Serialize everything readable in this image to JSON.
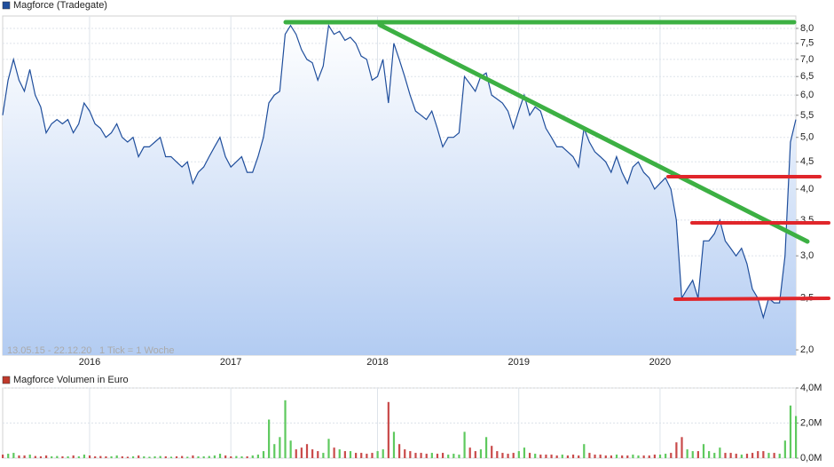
{
  "chart_data": [
    {
      "type": "line",
      "title": "Magforce (Tradegate)",
      "period": "13.05.15 - 22.12.20",
      "tick_note": "1 Tick = 1 Woche",
      "log": true,
      "grid": true,
      "color": "#1f4e9c",
      "categories": [
        null,
        null,
        null,
        null,
        null,
        null,
        null,
        null,
        null,
        null,
        null,
        null,
        null,
        null,
        null,
        null,
        "2016",
        null,
        null,
        null,
        null,
        null,
        null,
        null,
        null,
        null,
        null,
        null,
        null,
        null,
        null,
        null,
        null,
        null,
        null,
        null,
        null,
        null,
        null,
        null,
        null,
        null,
        "2017",
        null,
        null,
        null,
        null,
        null,
        null,
        null,
        null,
        null,
        null,
        null,
        null,
        null,
        null,
        null,
        null,
        null,
        null,
        null,
        null,
        null,
        null,
        null,
        null,
        null,
        null,
        "2018",
        null,
        null,
        null,
        null,
        null,
        null,
        null,
        null,
        null,
        null,
        null,
        null,
        null,
        null,
        null,
        null,
        null,
        null,
        null,
        null,
        null,
        null,
        null,
        null,
        null,
        "2019",
        null,
        null,
        null,
        null,
        null,
        null,
        null,
        null,
        null,
        null,
        null,
        null,
        null,
        null,
        null,
        null,
        null,
        null,
        null,
        null,
        null,
        null,
        null,
        null,
        null,
        "2020",
        null,
        null,
        null,
        null,
        null,
        null,
        null,
        null,
        null,
        null,
        null,
        null,
        null,
        null,
        null,
        null,
        null,
        null,
        null,
        null,
        null,
        null,
        null,
        null,
        null
      ],
      "values": [
        5.5,
        6.4,
        7.0,
        6.4,
        6.1,
        6.7,
        6.0,
        5.7,
        5.1,
        5.3,
        5.4,
        5.3,
        5.4,
        5.1,
        5.3,
        5.8,
        5.6,
        5.3,
        5.2,
        5.0,
        5.1,
        5.3,
        5.0,
        4.9,
        5.0,
        4.6,
        4.8,
        4.8,
        4.9,
        5.0,
        4.6,
        4.6,
        4.5,
        4.4,
        4.5,
        4.1,
        4.3,
        4.4,
        4.6,
        4.8,
        5.0,
        4.6,
        4.4,
        4.5,
        4.6,
        4.3,
        4.3,
        4.6,
        5.0,
        5.8,
        6.0,
        6.1,
        7.8,
        8.1,
        7.8,
        7.3,
        7.0,
        6.9,
        6.4,
        6.8,
        8.1,
        7.8,
        7.9,
        7.6,
        7.7,
        7.5,
        7.1,
        7.0,
        6.4,
        6.5,
        7.0,
        5.8,
        7.5,
        7.0,
        6.5,
        6.0,
        5.6,
        5.5,
        5.4,
        5.6,
        5.2,
        4.8,
        5.0,
        5.0,
        5.1,
        6.5,
        6.3,
        6.1,
        6.5,
        6.6,
        6.0,
        5.9,
        5.8,
        5.6,
        5.2,
        5.6,
        6.0,
        5.5,
        5.7,
        5.6,
        5.2,
        5.0,
        4.8,
        4.8,
        4.7,
        4.6,
        4.4,
        5.2,
        4.9,
        4.7,
        4.6,
        4.5,
        4.3,
        4.6,
        4.3,
        4.1,
        4.4,
        4.5,
        4.3,
        4.2,
        4.0,
        4.1,
        4.2,
        4.0,
        3.5,
        2.5,
        2.6,
        2.7,
        2.5,
        3.2,
        3.2,
        3.3,
        3.5,
        3.2,
        3.1,
        3.0,
        3.1,
        2.9,
        2.6,
        2.5,
        2.3,
        2.5,
        2.45,
        2.45,
        3.0,
        4.9,
        5.4
      ],
      "ylim": [
        1.955,
        8.44
      ],
      "yticks": [
        {
          "value": 2.0,
          "label": "2,0"
        },
        {
          "value": 2.5,
          "label": "2,5"
        },
        {
          "value": 3.0,
          "label": "3,0"
        },
        {
          "value": 3.5,
          "label": "3,5"
        },
        {
          "value": 4.0,
          "label": "4,0"
        },
        {
          "value": 4.5,
          "label": "4,5"
        },
        {
          "value": 5.0,
          "label": "5,0"
        },
        {
          "value": 5.5,
          "label": "5,5"
        },
        {
          "value": 6.0,
          "label": "6,0"
        },
        {
          "value": 6.5,
          "label": "6,5"
        },
        {
          "value": 7.0,
          "label": "7,0"
        },
        {
          "value": 7.5,
          "label": "7,5"
        },
        {
          "value": 8.0,
          "label": "8,0"
        }
      ]
    },
    {
      "type": "bar",
      "title": "Magforce Volumen in Euro",
      "color": "#c0392b",
      "up_color": "#5ec95e",
      "down_color": "#c94a4a",
      "grid": true,
      "values": [
        200000,
        250000,
        300000,
        150000,
        150000,
        200000,
        120000,
        100000,
        150000,
        100000,
        120000,
        100000,
        100000,
        150000,
        100000,
        200000,
        150000,
        100000,
        120000,
        100000,
        100000,
        150000,
        100000,
        80000,
        100000,
        150000,
        100000,
        80000,
        100000,
        120000,
        100000,
        80000,
        100000,
        120000,
        80000,
        150000,
        100000,
        100000,
        120000,
        150000,
        250000,
        150000,
        100000,
        120000,
        100000,
        100000,
        150000,
        200000,
        400000,
        2200000,
        800000,
        1200000,
        3300000,
        1000000,
        500000,
        600000,
        800000,
        500000,
        400000,
        300000,
        1100000,
        600000,
        500000,
        400000,
        400000,
        300000,
        300000,
        250000,
        300000,
        400000,
        500000,
        3200000,
        1500000,
        800000,
        500000,
        400000,
        300000,
        300000,
        250000,
        300000,
        250000,
        300000,
        200000,
        250000,
        200000,
        1500000,
        600000,
        400000,
        500000,
        1200000,
        700000,
        400000,
        300000,
        250000,
        300000,
        400000,
        600000,
        300000,
        250000,
        200000,
        200000,
        200000,
        150000,
        200000,
        150000,
        200000,
        150000,
        800000,
        300000,
        200000,
        200000,
        150000,
        150000,
        200000,
        150000,
        150000,
        200000,
        150000,
        150000,
        150000,
        200000,
        200000,
        250000,
        300000,
        900000,
        1200000,
        500000,
        400000,
        400000,
        800000,
        400000,
        300000,
        600000,
        300000,
        300000,
        250000,
        200000,
        250000,
        300000,
        400000,
        400000,
        300000,
        300000,
        250000,
        1000000,
        3000000,
        2400000
      ],
      "ylim": [
        0,
        4000000
      ],
      "yticks": [
        {
          "value": 0,
          "label": "0,0M"
        },
        {
          "value": 2000000,
          "label": "2,0M"
        },
        {
          "value": 4000000,
          "label": "4,0M"
        }
      ]
    }
  ]
}
